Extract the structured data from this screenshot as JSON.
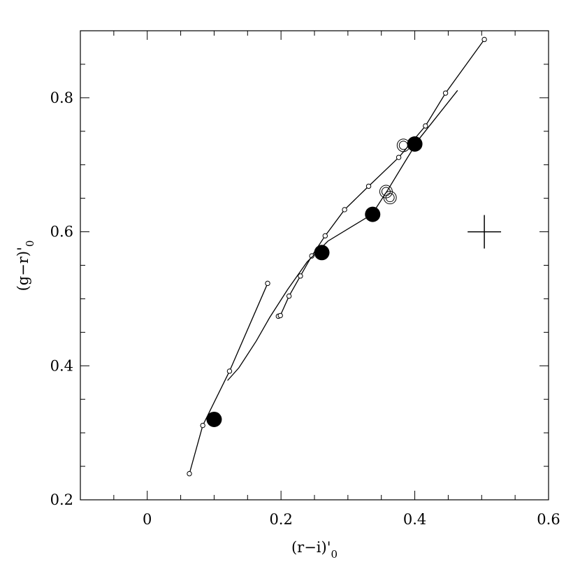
{
  "chart_data": {
    "type": "line",
    "xlabel": "(r−i)'",
    "xlabel_sub": "0",
    "ylabel": "(g−r)'",
    "ylabel_sub": "0",
    "xlim": [
      -0.1,
      0.6
    ],
    "ylim": [
      0.2,
      0.9
    ],
    "xticks": [
      0,
      0.2,
      0.4,
      0.6
    ],
    "yticks": [
      0.2,
      0.4,
      0.6,
      0.8
    ],
    "xminorticks": [
      -0.05,
      0.05,
      0.1,
      0.15,
      0.25,
      0.3,
      0.35,
      0.45,
      0.5,
      0.55
    ],
    "yminorticks": [
      0.25,
      0.3,
      0.35,
      0.45,
      0.5,
      0.55,
      0.65,
      0.7,
      0.75,
      0.85
    ],
    "color": "#000000",
    "series": [
      {
        "style": "line-small-circles",
        "x": [
          0.063,
          0.083,
          0.123,
          0.18,
          null,
          0.196,
          0.199,
          0.212,
          0.229,
          0.246,
          0.266,
          0.295,
          0.331,
          0.376,
          0.416,
          0.446,
          0.504
        ],
        "values": [
          0.239,
          0.311,
          0.392,
          0.523,
          null,
          0.474,
          0.475,
          0.504,
          0.534,
          0.564,
          0.594,
          0.633,
          0.668,
          0.711,
          0.758,
          0.807,
          0.887
        ]
      },
      {
        "style": "line",
        "x": [
          0.12,
          0.137,
          0.163,
          0.183,
          0.21,
          0.239,
          0.27,
          0.336,
          0.36,
          0.385,
          0.406,
          0.464
        ],
        "values": [
          0.378,
          0.397,
          0.437,
          0.472,
          0.514,
          0.555,
          0.586,
          0.626,
          0.663,
          0.704,
          0.738,
          0.811
        ]
      },
      {
        "style": "filled-circles",
        "x": [
          0.1,
          0.261,
          0.337,
          0.4
        ],
        "values": [
          0.32,
          0.569,
          0.626,
          0.731
        ]
      },
      {
        "style": "double-circles",
        "x": [
          0.383,
          0.357,
          0.363
        ],
        "values": [
          0.729,
          0.66,
          0.651
        ]
      },
      {
        "style": "errorbar",
        "x": [
          0.504
        ],
        "values": [
          0.6
        ],
        "xerr": [
          0.025
        ],
        "yerr": [
          0.025
        ]
      }
    ]
  }
}
